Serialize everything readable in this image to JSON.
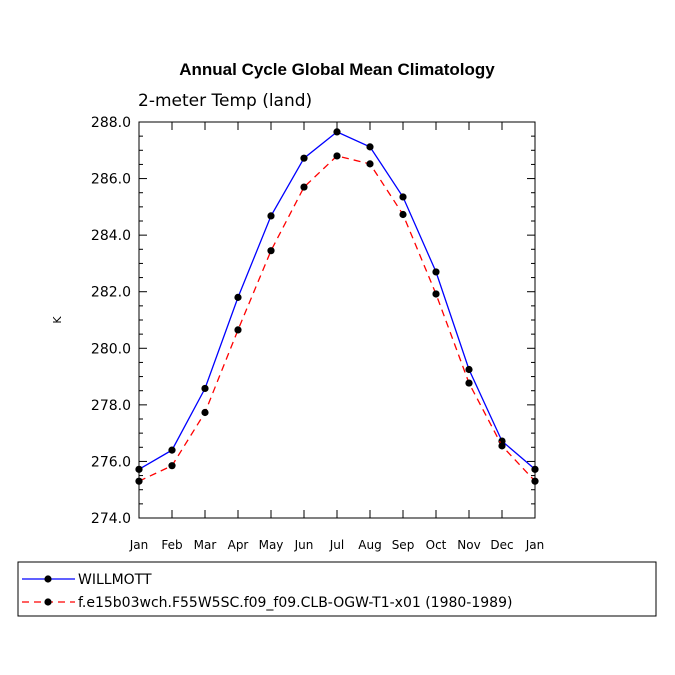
{
  "chart_data": {
    "type": "line",
    "title": "Annual Cycle Global Mean Climatology",
    "subtitle": "2-meter Temp (land)",
    "xlabel": "",
    "ylabel": "K",
    "categories": [
      "Jan",
      "Feb",
      "Mar",
      "Apr",
      "May",
      "Jun",
      "Jul",
      "Aug",
      "Sep",
      "Oct",
      "Nov",
      "Dec",
      "Jan"
    ],
    "ylim": [
      274.0,
      288.0
    ],
    "yticks": [
      "274.0",
      "276.0",
      "278.0",
      "280.0",
      "282.0",
      "284.0",
      "286.0",
      "288.0"
    ],
    "legend_position": "bottom-left",
    "series": [
      {
        "name": "WILLMOTT",
        "color": "#0000ff",
        "style": "solid",
        "values": [
          275.72,
          276.4,
          278.58,
          281.8,
          284.68,
          286.72,
          287.65,
          287.12,
          285.35,
          282.7,
          279.25,
          276.72,
          275.72
        ]
      },
      {
        "name": "f.e15b03wch.F55W5SC.f09_f09.CLB-OGW-T1-x01 (1980-1989)",
        "color": "#ff0000",
        "style": "dashed",
        "values": [
          275.3,
          275.85,
          277.73,
          280.65,
          283.45,
          285.7,
          286.8,
          286.52,
          284.73,
          281.92,
          278.77,
          276.55,
          275.3
        ]
      }
    ]
  }
}
